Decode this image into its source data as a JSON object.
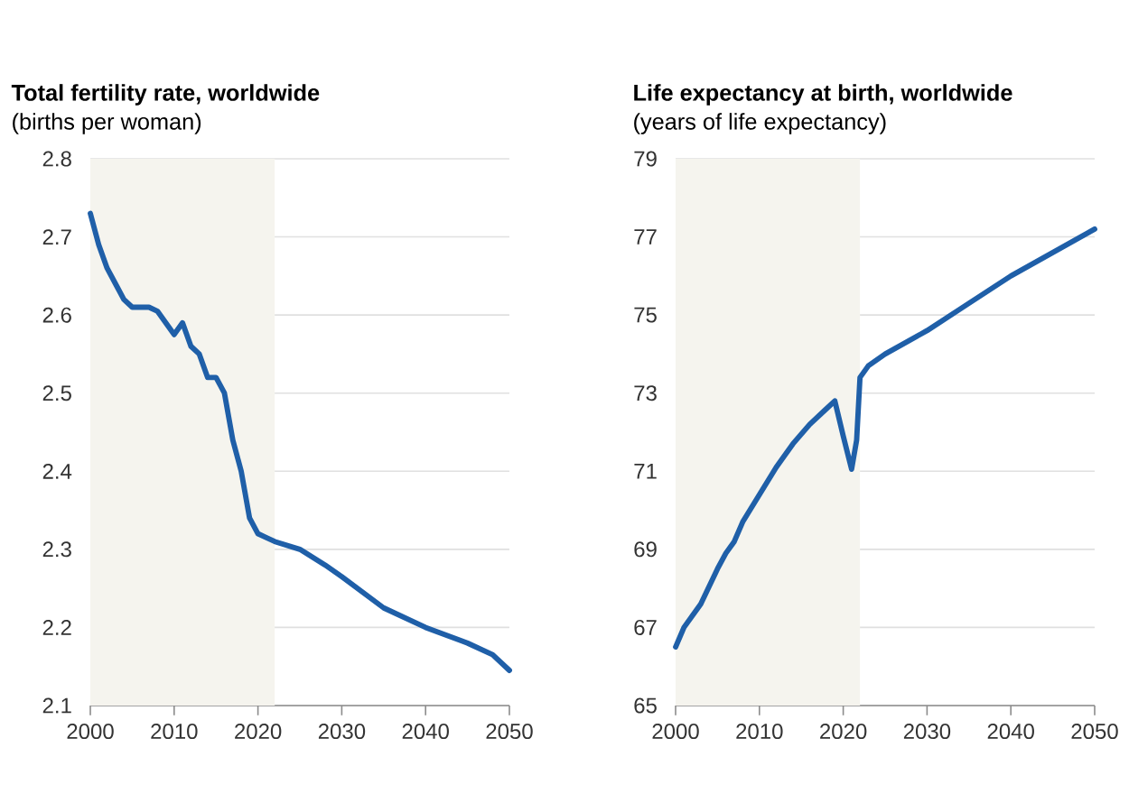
{
  "chart_data": [
    {
      "type": "line",
      "title": "Total fertility rate, worldwide",
      "subtitle": "(births per woman)",
      "x": [
        2000,
        2001,
        2002,
        2003,
        2004,
        2005,
        2006,
        2007,
        2008,
        2009,
        2010,
        2011,
        2012,
        2013,
        2014,
        2015,
        2016,
        2017,
        2018,
        2019,
        2020,
        2021,
        2022,
        2025,
        2028,
        2030,
        2035,
        2040,
        2045,
        2048,
        2050
      ],
      "values": [
        2.73,
        2.69,
        2.66,
        2.64,
        2.62,
        2.61,
        2.61,
        2.61,
        2.605,
        2.59,
        2.575,
        2.59,
        2.56,
        2.55,
        2.52,
        2.52,
        2.5,
        2.44,
        2.4,
        2.34,
        2.32,
        2.315,
        2.31,
        2.3,
        2.28,
        2.265,
        2.225,
        2.2,
        2.18,
        2.165,
        2.145
      ],
      "color": "#1f5fa8",
      "xlim": [
        2000,
        2050
      ],
      "ylim": [
        2.1,
        2.8
      ],
      "xticks": [
        2000,
        2010,
        2020,
        2030,
        2040,
        2050
      ],
      "yticks": [
        2.1,
        2.2,
        2.3,
        2.4,
        2.5,
        2.6,
        2.7,
        2.8
      ],
      "grid": "y",
      "bands": [
        {
          "axis": "x",
          "from": 2000,
          "to": 2022,
          "color": "#f5f4ee"
        }
      ]
    },
    {
      "type": "line",
      "title": "Life expectancy at birth, worldwide",
      "subtitle": "(years of life expectancy)",
      "x": [
        2000,
        2001,
        2003,
        2005,
        2006,
        2007,
        2008,
        2010,
        2012,
        2014,
        2016,
        2018,
        2019,
        2020,
        2021,
        2021.6,
        2022,
        2023,
        2025,
        2030,
        2035,
        2040,
        2045,
        2050
      ],
      "values": [
        66.5,
        67.0,
        67.6,
        68.5,
        68.9,
        69.2,
        69.7,
        70.4,
        71.1,
        71.7,
        72.2,
        72.6,
        72.8,
        71.9,
        71.05,
        71.8,
        73.4,
        73.7,
        74.0,
        74.6,
        75.3,
        76.0,
        76.6,
        77.2
      ],
      "color": "#1f5fa8",
      "xlim": [
        2000,
        2050
      ],
      "ylim": [
        65,
        79
      ],
      "xticks": [
        2000,
        2010,
        2020,
        2030,
        2040,
        2050
      ],
      "yticks": [
        65,
        67,
        69,
        71,
        73,
        75,
        77,
        79
      ],
      "grid": "y",
      "bands": [
        {
          "axis": "x",
          "from": 2000,
          "to": 2022,
          "color": "#f5f4ee"
        }
      ]
    }
  ]
}
